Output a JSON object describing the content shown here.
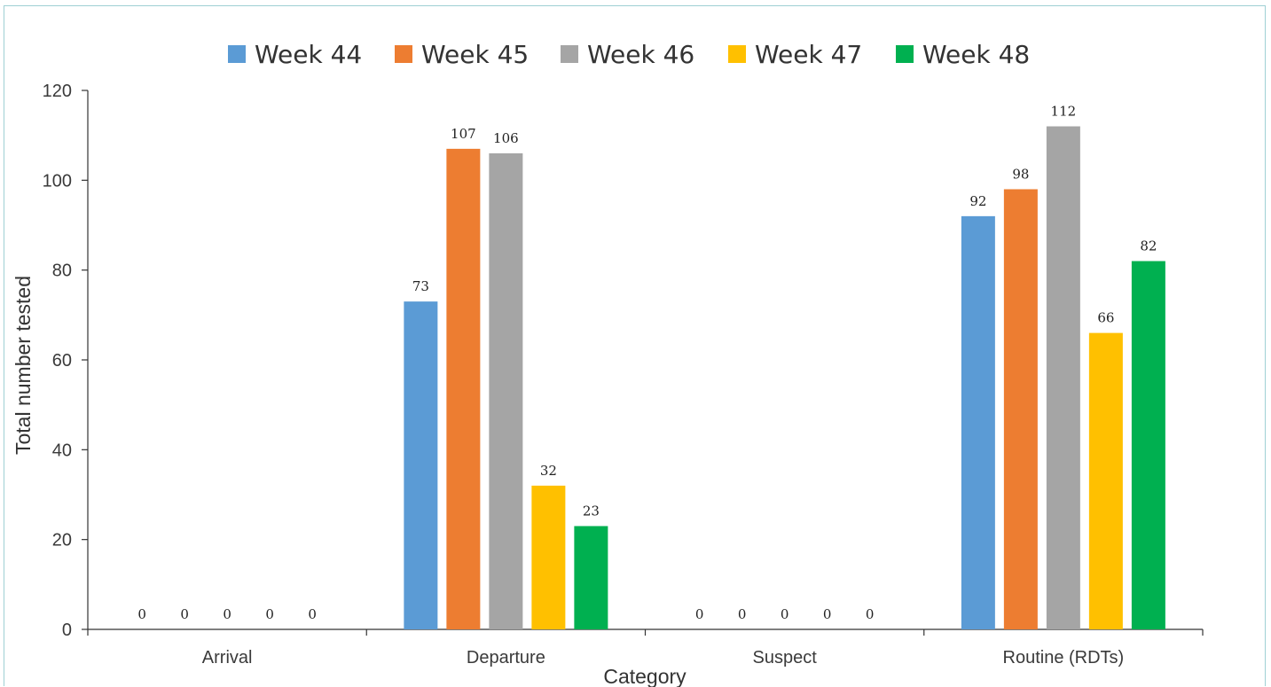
{
  "chart_data": {
    "type": "bar",
    "title": "",
    "xlabel": "Category",
    "ylabel": "Total number tested",
    "ylim": [
      0,
      120
    ],
    "yticks": [
      0,
      20,
      40,
      60,
      80,
      100,
      120
    ],
    "categories": [
      "Arrival",
      "Departure",
      "Suspect",
      "Routine (RDTs)"
    ],
    "legend_position": "top",
    "grid": false,
    "series": [
      {
        "name": "Week 44",
        "color": "#5b9bd5",
        "values": [
          0,
          73,
          0,
          92
        ]
      },
      {
        "name": "Week 45",
        "color": "#ed7d31",
        "values": [
          0,
          107,
          0,
          98
        ]
      },
      {
        "name": "Week 46",
        "color": "#a5a5a5",
        "values": [
          0,
          106,
          0,
          112
        ]
      },
      {
        "name": "Week 47",
        "color": "#ffc000",
        "values": [
          0,
          32,
          0,
          66
        ]
      },
      {
        "name": "Week 48",
        "color": "#00b050",
        "values": [
          0,
          23,
          0,
          82
        ]
      }
    ]
  }
}
